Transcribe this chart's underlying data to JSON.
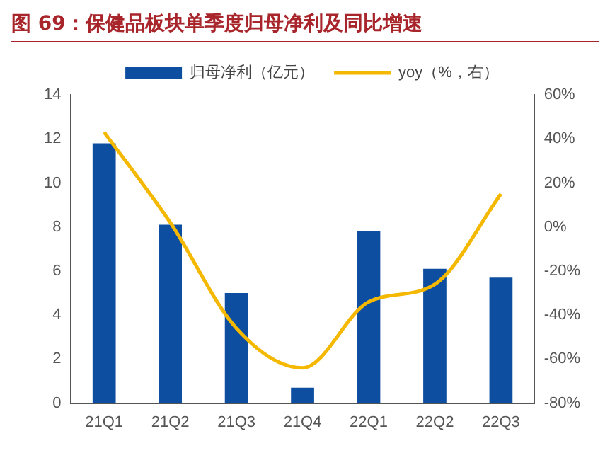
{
  "chart_data": {
    "type": "bar",
    "title": "图 69：保健品板块单季度归母净利及同比增速",
    "categories": [
      "21Q1",
      "21Q2",
      "21Q3",
      "21Q4",
      "22Q1",
      "22Q2",
      "22Q3"
    ],
    "series": [
      {
        "name": "归母净利（亿元）",
        "color": "#0d4ea0",
        "values": [
          11.8,
          8.1,
          5.0,
          0.7,
          7.8,
          6.1,
          5.7
        ]
      },
      {
        "name": "yoy（%，右）",
        "type": "line",
        "axis": "y2",
        "color": "#f5b800",
        "values": [
          43,
          2,
          -46,
          -64,
          -34,
          -26,
          15
        ]
      }
    ],
    "ylim": [
      0,
      14
    ],
    "yticks": [
      0,
      2,
      4,
      6,
      8,
      10,
      12,
      14
    ],
    "y2lim": [
      -80,
      60
    ],
    "y2ticks": [
      {
        "value": -80,
        "label": "-80%"
      },
      {
        "value": -60,
        "label": "-60%"
      },
      {
        "value": -40,
        "label": "-40%"
      },
      {
        "value": -20,
        "label": "-20%"
      },
      {
        "value": 0,
        "label": "0%"
      },
      {
        "value": 20,
        "label": "20%"
      },
      {
        "value": 40,
        "label": "40%"
      },
      {
        "value": 60,
        "label": "60%"
      }
    ],
    "legend": "top",
    "grid": false,
    "marker": "none",
    "line_style": "solid"
  }
}
